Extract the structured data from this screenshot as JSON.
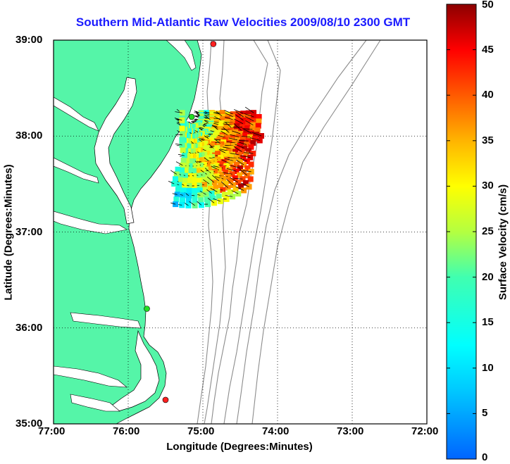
{
  "title": "Southern Mid-Atlantic Raw Velocities 2009/08/10 2300 GMT",
  "map": {
    "xlabel": "Longitude (Degrees:Minutes)",
    "ylabel": "Latitude (Degrees:Minutes)",
    "lon_ticks": [
      "77:00",
      "76:00",
      "75:00",
      "74:00",
      "73:00",
      "72:00"
    ],
    "lat_ticks": [
      "39:00",
      "38:00",
      "37:00",
      "36:00",
      "35:00"
    ],
    "lon_range": [
      -77,
      -72
    ],
    "lat_range": [
      35,
      39
    ],
    "land_color": "#55f5a8",
    "bathymetry_color": "#8c8c8c"
  },
  "colorbar": {
    "label": "Surface Velocity (cm/s)",
    "ticks": [
      "0",
      "5",
      "10",
      "15",
      "20",
      "25",
      "30",
      "35",
      "40",
      "45",
      "50"
    ],
    "range": [
      0,
      50
    ],
    "colormap": "jet"
  },
  "stations": [
    {
      "lon": -74.86,
      "lat": 38.96,
      "color": "#ff2020"
    },
    {
      "lon": -75.15,
      "lat": 38.2,
      "color": "#22dd22"
    },
    {
      "lon": -75.75,
      "lat": 36.2,
      "color": "#22dd22"
    },
    {
      "lon": -75.5,
      "lat": 35.25,
      "color": "#ff2020"
    }
  ]
}
